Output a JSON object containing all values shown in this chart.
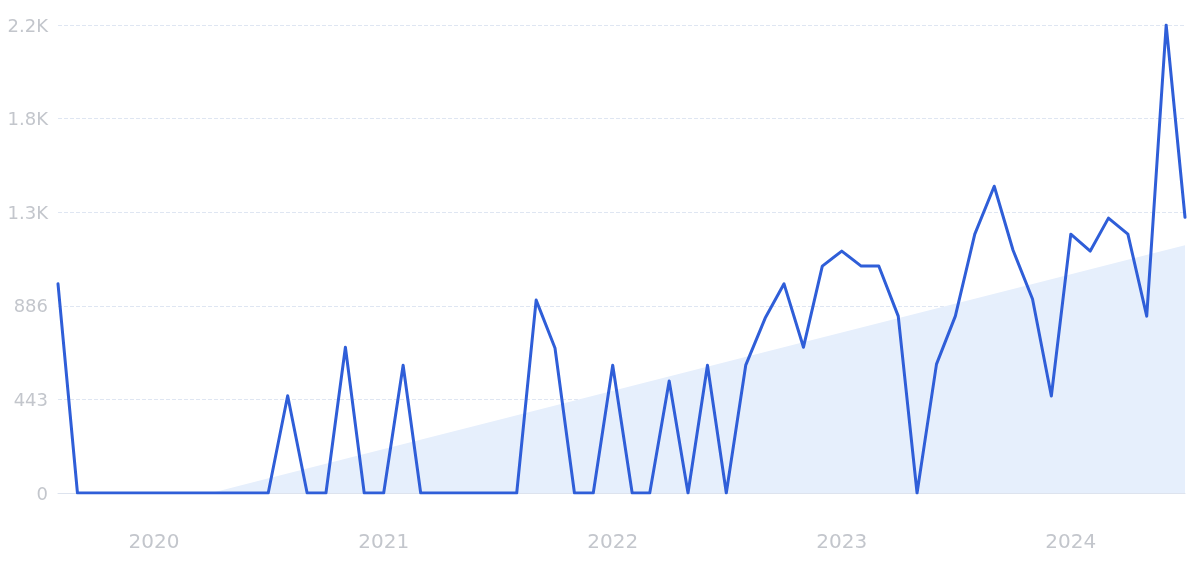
{
  "chart_data": {
    "type": "line",
    "x": [
      "2019-08",
      "2019-09",
      "2019-10",
      "2019-11",
      "2019-12",
      "2020-01",
      "2020-02",
      "2020-03",
      "2020-04",
      "2020-05",
      "2020-06",
      "2020-07",
      "2020-08",
      "2020-09",
      "2020-10",
      "2020-11",
      "2020-12",
      "2021-01",
      "2021-02",
      "2021-03",
      "2021-04",
      "2021-05",
      "2021-06",
      "2021-07",
      "2021-08",
      "2021-09",
      "2021-10",
      "2021-11",
      "2021-12",
      "2022-01",
      "2022-02",
      "2022-03",
      "2022-04",
      "2022-05",
      "2022-06",
      "2022-07",
      "2022-08",
      "2022-09",
      "2022-10",
      "2022-11",
      "2022-12",
      "2023-01",
      "2023-02",
      "2023-03",
      "2023-04",
      "2023-05",
      "2023-06",
      "2023-07",
      "2023-08",
      "2023-09",
      "2023-10",
      "2023-11",
      "2023-12",
      "2024-01",
      "2024-02",
      "2024-03",
      "2024-04",
      "2024-05",
      "2024-06",
      "2024-07"
    ],
    "series": [
      {
        "type": "area",
        "color": "#e6effc",
        "x": [
          "2020-04",
          "2024-07"
        ],
        "values": [
          0,
          1173
        ]
      },
      {
        "type": "line",
        "color": "#2f5ed8",
        "values": [
          990,
          0,
          0,
          0,
          0,
          0,
          0,
          0,
          0,
          0,
          0,
          0,
          460,
          0,
          0,
          690,
          0,
          0,
          605,
          0,
          0,
          0,
          0,
          0,
          0,
          913,
          686,
          0,
          0,
          605,
          0,
          0,
          530,
          0,
          605,
          0,
          605,
          828,
          990,
          690,
          1074,
          1145,
          1074,
          1074,
          837,
          0,
          610,
          837,
          1225,
          1452,
          1149,
          918,
          459,
          1225,
          1145,
          1301,
          1225,
          837,
          2215,
          1305
        ]
      }
    ],
    "xlim": [
      "2019-08",
      "2024-07"
    ],
    "xticks": [
      "2020",
      "2021",
      "2022",
      "2023",
      "2024"
    ],
    "ylim": [
      0,
      2215
    ],
    "yticks": [
      0,
      443,
      886,
      {
        "value": 1329,
        "label": "1.3K"
      },
      {
        "value": 1772,
        "label": "1.8K"
      },
      {
        "value": 2215,
        "label": "2.2K"
      }
    ],
    "grid": "y",
    "marker": "none",
    "line_style": "solid"
  }
}
